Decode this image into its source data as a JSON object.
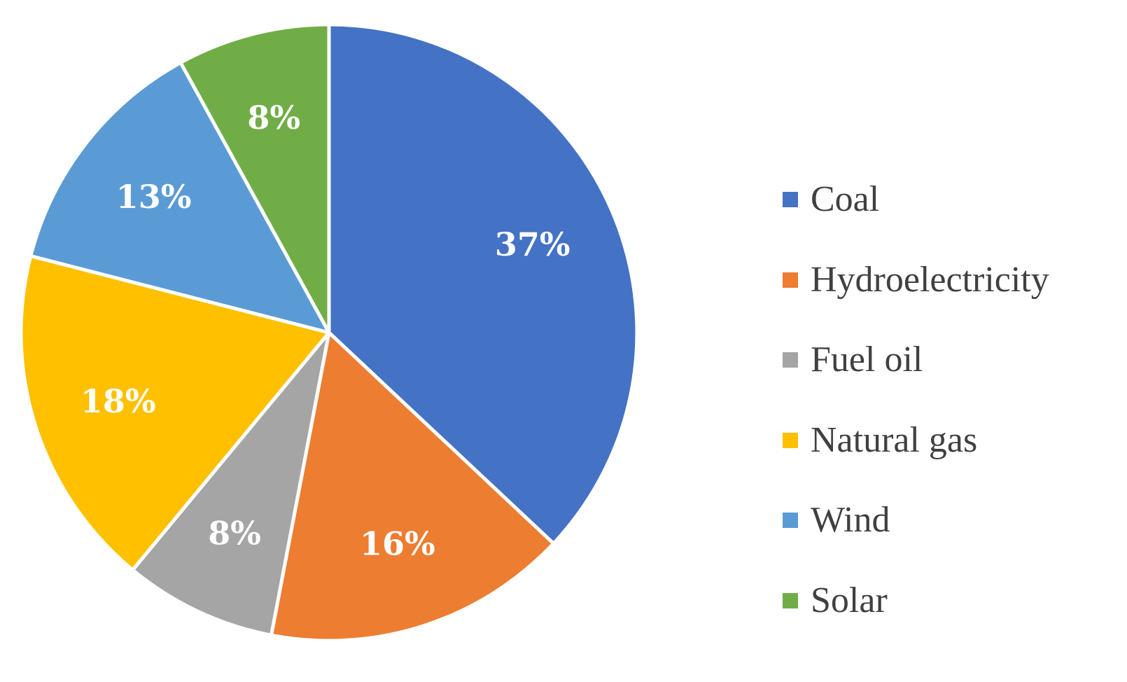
{
  "chart_data": {
    "type": "pie",
    "title": "",
    "legend_position": "right",
    "slices": [
      {
        "name": "Coal",
        "value": 37,
        "label": "37%",
        "color": "#4472C4"
      },
      {
        "name": "Hydroelectricity",
        "value": 16,
        "label": "16%",
        "color": "#ED7D31"
      },
      {
        "name": "Fuel oil",
        "value": 8,
        "label": "8%",
        "color": "#A5A5A5"
      },
      {
        "name": "Natural gas",
        "value": 18,
        "label": "18%",
        "color": "#FFC000"
      },
      {
        "name": "Wind",
        "value": 13,
        "label": "13%",
        "color": "#5B9BD5"
      },
      {
        "name": "Solar",
        "value": 8,
        "label": "8%",
        "color": "#70AD47"
      }
    ]
  }
}
